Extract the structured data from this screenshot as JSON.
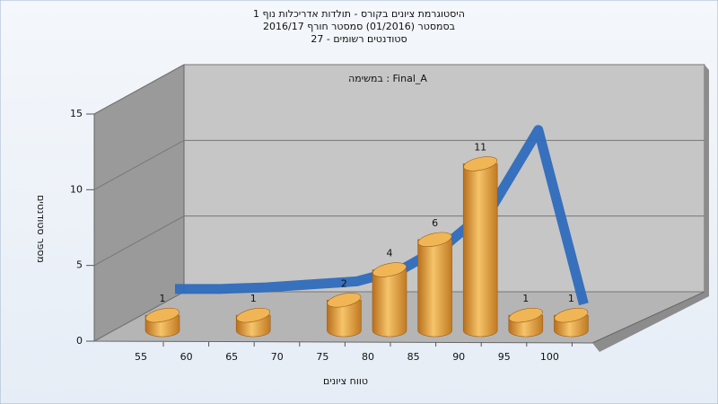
{
  "chart_data": {
    "type": "bar",
    "title": "היסטוגרמת ציונים בקורס - תולדות אדריכלות נוף 1",
    "subtitle": [
      "בסמסטר (01/2016)  סמסטר חורף 2016/17",
      "סטודנטים רשומים - 27"
    ],
    "annotation": "במשימה : Final_A",
    "x_label": "טווח ציונים",
    "y_label": "מספר סטודנטים",
    "categories": [
      "55",
      "60",
      "65",
      "70",
      "75",
      "80",
      "85",
      "90",
      "95",
      "100"
    ],
    "series": [
      {
        "color": "#e8a33a",
        "values": [
          1,
          0,
          1,
          0,
          2,
          4,
          6,
          11,
          1,
          1
        ]
      },
      {
        "color": "#2f6bbd",
        "values": [
          2.5,
          2.5,
          2.6,
          2.8,
          3,
          3.8,
          5.5,
          8,
          13,
          1.5
        ]
      }
    ],
    "ylim": [
      0,
      15
    ],
    "yticks": [
      0,
      5,
      10,
      15
    ]
  }
}
